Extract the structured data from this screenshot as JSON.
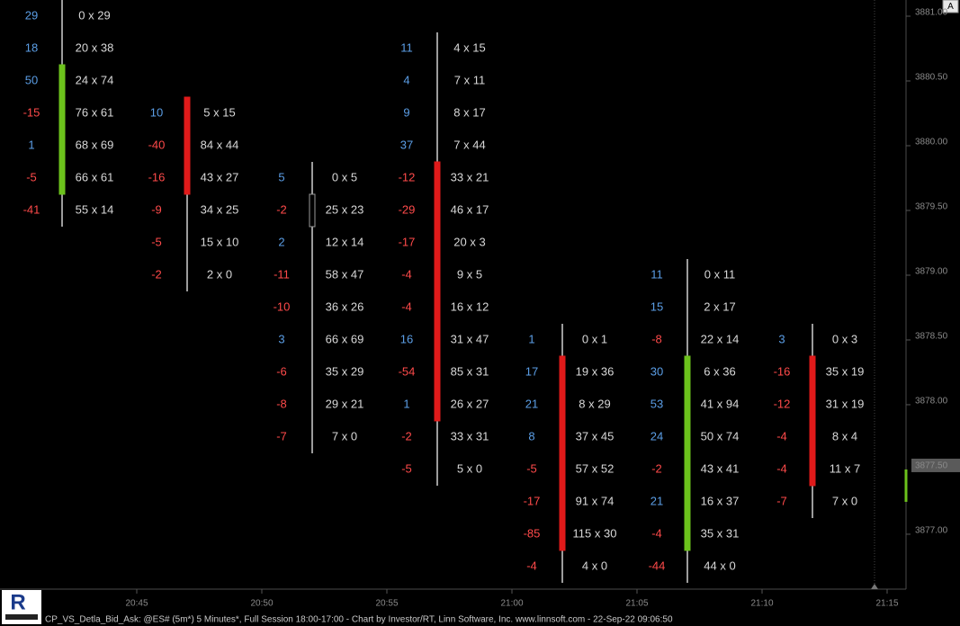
{
  "chart_data": {
    "type": "footprint",
    "ylim": [
      3876.576,
      3881.125
    ],
    "yticks": [
      {
        "value": 3881.0,
        "label": "3881.00"
      },
      {
        "value": 3880.5,
        "label": "3880.50"
      },
      {
        "value": 3880.0,
        "label": "3880.00"
      },
      {
        "value": 3879.5,
        "label": "3879.50"
      },
      {
        "value": 3879.0,
        "label": "3879.00"
      },
      {
        "value": 3878.5,
        "label": "3878.50"
      },
      {
        "value": 3878.0,
        "label": "3878.00"
      },
      {
        "value": 3877.0,
        "label": "3877.00"
      }
    ],
    "last_price": {
      "value": 3877.5,
      "label": "3877.50"
    },
    "xticks": [
      "20:45",
      "20:50",
      "20:55",
      "21:00",
      "21:05",
      "21:10",
      "21:15"
    ],
    "colors": {
      "up": "#6cc21c",
      "down": "#e01a1a",
      "flat": "#9a9a9a",
      "positive": "#5b9ee6",
      "negative": "#ff4a4a"
    },
    "candles": [
      {
        "open": 3879.75,
        "high": 3881.0,
        "low": 3879.5,
        "close": 3880.5,
        "rows": [
          {
            "delta": 29,
            "volume": "0 x 29"
          },
          {
            "delta": 18,
            "volume": "20 x 38"
          },
          {
            "delta": 50,
            "volume": "24 x 74"
          },
          {
            "delta": -15,
            "volume": "76 x 61"
          },
          {
            "delta": 1,
            "volume": "68 x 69"
          },
          {
            "delta": -5,
            "volume": "66 x 61"
          },
          {
            "delta": -41,
            "volume": "55 x 14"
          }
        ]
      },
      {
        "open": 3880.25,
        "high": 3880.25,
        "low": 3879.0,
        "close": 3879.75,
        "rows": [
          {
            "delta": 10,
            "volume": "5 x 15"
          },
          {
            "delta": -40,
            "volume": "84 x 44"
          },
          {
            "delta": -16,
            "volume": "43 x 27"
          },
          {
            "delta": -9,
            "volume": "34 x 25"
          },
          {
            "delta": -5,
            "volume": "15 x 10"
          },
          {
            "delta": -2,
            "volume": "2 x 0"
          }
        ]
      },
      {
        "open": 3879.5,
        "high": 3879.75,
        "low": 3877.75,
        "close": 3879.5,
        "rows": [
          {
            "delta": 5,
            "volume": "0 x 5"
          },
          {
            "delta": -2,
            "volume": "25 x 23"
          },
          {
            "delta": 2,
            "volume": "12 x 14"
          },
          {
            "delta": -11,
            "volume": "58 x 47"
          },
          {
            "delta": -10,
            "volume": "36 x 26"
          },
          {
            "delta": 3,
            "volume": "66 x 69"
          },
          {
            "delta": -6,
            "volume": "35 x 29"
          },
          {
            "delta": -8,
            "volume": "29 x 21"
          },
          {
            "delta": -7,
            "volume": "7 x 0"
          }
        ]
      },
      {
        "open": 3879.75,
        "high": 3880.75,
        "low": 3877.5,
        "close": 3878.0,
        "rows": [
          {
            "delta": 11,
            "volume": "4 x 15"
          },
          {
            "delta": 4,
            "volume": "7 x 11"
          },
          {
            "delta": 9,
            "volume": "8 x 17"
          },
          {
            "delta": 37,
            "volume": "7 x 44"
          },
          {
            "delta": -12,
            "volume": "33 x 21"
          },
          {
            "delta": -29,
            "volume": "46 x 17"
          },
          {
            "delta": -17,
            "volume": "20 x 3"
          },
          {
            "delta": -4,
            "volume": "9 x 5"
          },
          {
            "delta": -4,
            "volume": "16 x 12"
          },
          {
            "delta": 16,
            "volume": "31 x 47"
          },
          {
            "delta": -54,
            "volume": "85 x 31"
          },
          {
            "delta": 1,
            "volume": "26 x 27"
          },
          {
            "delta": -2,
            "volume": "33 x 31"
          },
          {
            "delta": -5,
            "volume": "5 x 0"
          }
        ]
      },
      {
        "open": 3878.25,
        "high": 3878.5,
        "low": 3876.75,
        "close": 3877.0,
        "rows": [
          {
            "delta": 1,
            "volume": "0 x 1"
          },
          {
            "delta": 17,
            "volume": "19 x 36"
          },
          {
            "delta": 21,
            "volume": "8 x 29"
          },
          {
            "delta": 8,
            "volume": "37 x 45"
          },
          {
            "delta": -5,
            "volume": "57 x 52"
          },
          {
            "delta": -17,
            "volume": "91 x 74"
          },
          {
            "delta": -85,
            "volume": "115 x 30"
          },
          {
            "delta": -4,
            "volume": "4 x 0"
          }
        ]
      },
      {
        "open": 3877.0,
        "high": 3879.0,
        "low": 3876.75,
        "close": 3878.25,
        "rows": [
          {
            "delta": 11,
            "volume": "0 x 11"
          },
          {
            "delta": 15,
            "volume": "2 x 17"
          },
          {
            "delta": -8,
            "volume": "22 x 14"
          },
          {
            "delta": 30,
            "volume": "6 x 36"
          },
          {
            "delta": 53,
            "volume": "41 x 94"
          },
          {
            "delta": 24,
            "volume": "50 x 74"
          },
          {
            "delta": -2,
            "volume": "43 x 41"
          },
          {
            "delta": 21,
            "volume": "16 x 37"
          },
          {
            "delta": -4,
            "volume": "35 x 31"
          },
          {
            "delta": -44,
            "volume": "44 x 0"
          }
        ]
      },
      {
        "open": 3878.25,
        "high": 3878.5,
        "low": 3877.25,
        "close": 3877.5,
        "rows": [
          {
            "delta": 3,
            "volume": "0 x 3"
          },
          {
            "delta": -16,
            "volume": "35 x 19"
          },
          {
            "delta": -12,
            "volume": "31 x 19"
          },
          {
            "delta": -4,
            "volume": "8 x 4"
          },
          {
            "delta": -4,
            "volume": "11 x 7"
          },
          {
            "delta": -7,
            "volume": "7 x 0"
          }
        ]
      }
    ],
    "footer": "CP_VS_Detla_Bid_Ask: @ES# (5m*) 5 Minutes*, Full Session 18:00-17:00 - Chart by Investor/RT, Linn Software, Inc. www.linnsoft.com - 22-Sep-22 09:06:50",
    "logo": "R",
    "button": "A"
  }
}
